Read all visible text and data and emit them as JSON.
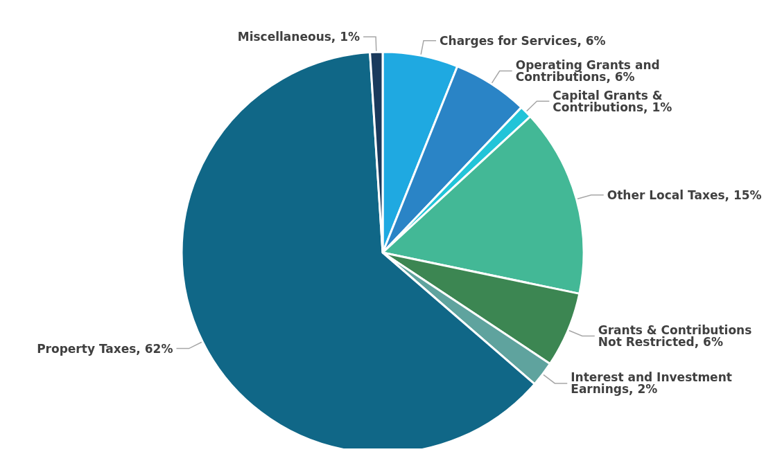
{
  "chart_data": {
    "type": "pie",
    "categories": [
      "Charges for Services, 6%",
      "Operating Grants and Contributions, 6%",
      "Capital Grants & Contributions, 1%",
      "Other Local Taxes, 15%",
      "Grants & Contributions Not Restricted, 6%",
      "Interest and Investment Earnings, 2%",
      "Property Taxes, 62%",
      "Miscellaneous, 1%"
    ],
    "values": [
      6,
      6,
      1,
      15,
      6,
      2,
      62,
      1
    ],
    "colors": [
      "#1fa9e1",
      "#2a84c6",
      "#22c4d8",
      "#43b896",
      "#3c8652",
      "#5fa39e",
      "#106787",
      "#1a3a5c"
    ],
    "legend": false
  }
}
